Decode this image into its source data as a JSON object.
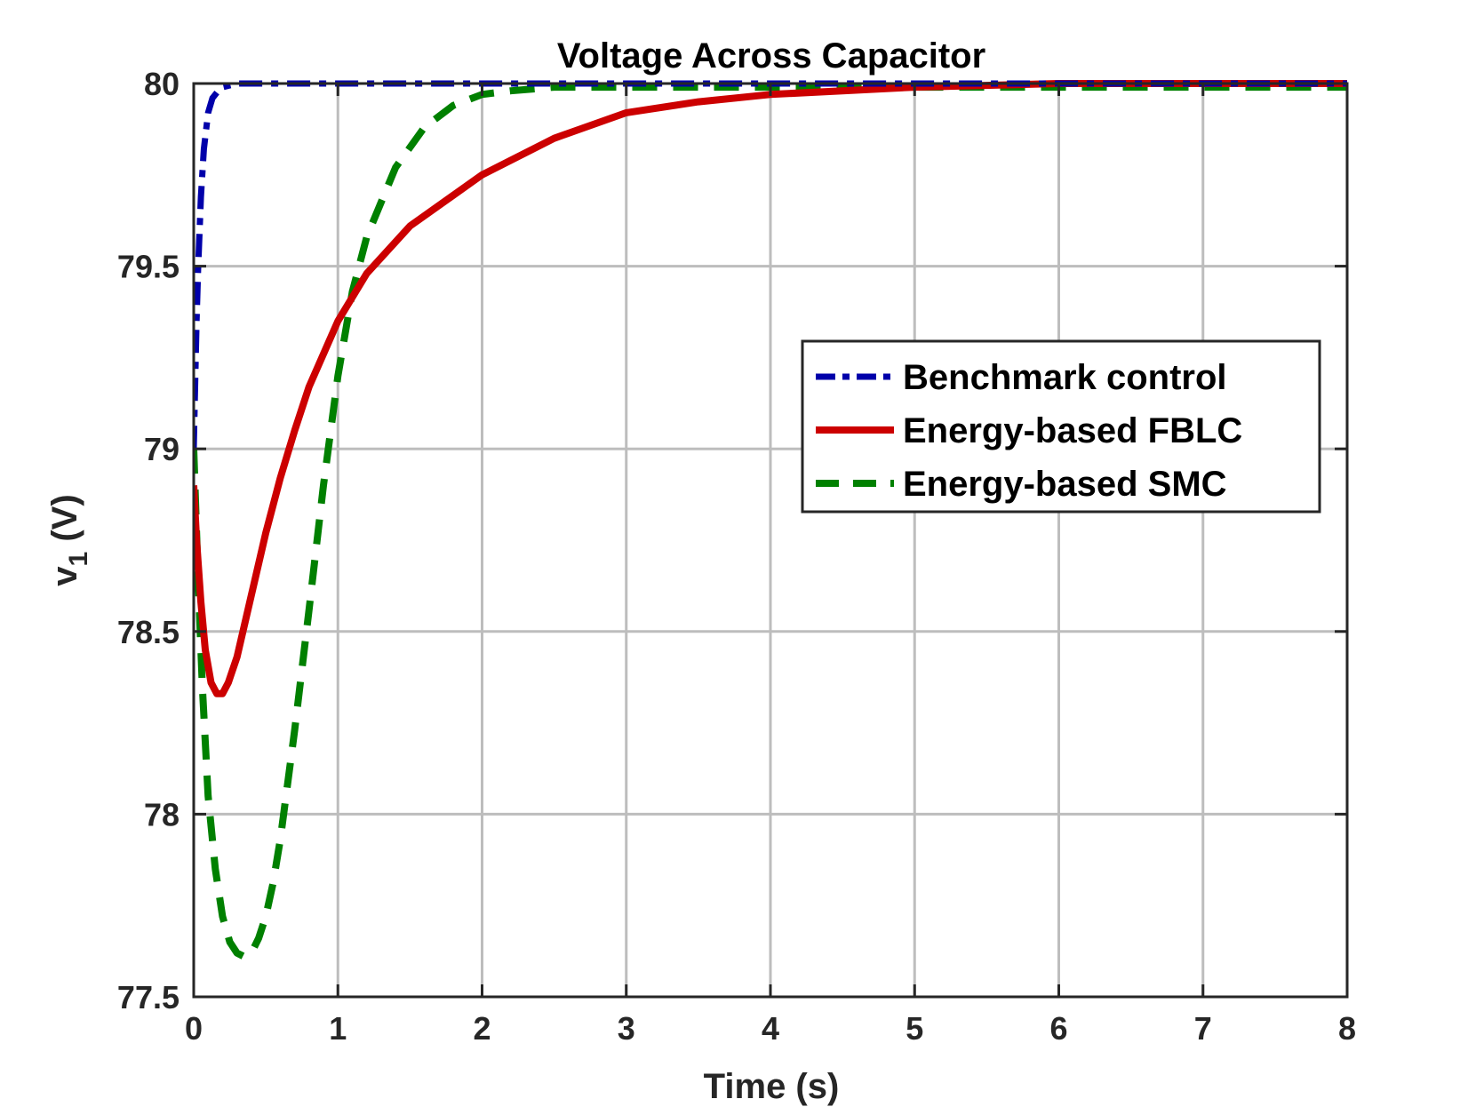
{
  "chart_data": {
    "type": "line",
    "title": "Voltage Across Capacitor",
    "xlabel": "Time (s)",
    "ylabel": {
      "main": "v",
      "subscript": "1",
      "unit": " (V)"
    },
    "xlim": [
      0,
      8
    ],
    "ylim": [
      77.5,
      80
    ],
    "xticks": [
      0,
      1,
      2,
      3,
      4,
      5,
      6,
      7,
      8
    ],
    "yticks": [
      77.5,
      78,
      78.5,
      79,
      79.5,
      80
    ],
    "xtick_labels": [
      "0",
      "1",
      "2",
      "3",
      "4",
      "5",
      "6",
      "7",
      "8"
    ],
    "ytick_labels": [
      "77.5",
      "78",
      "78.5",
      "79",
      "79.5",
      "80"
    ],
    "grid": true,
    "legend_position": "right-middle",
    "series": [
      {
        "name": "Benchmark control",
        "color": "#0000aa",
        "style": "dash-dot",
        "x": [
          0,
          0.01,
          0.02,
          0.03,
          0.05,
          0.07,
          0.1,
          0.13,
          0.17,
          0.2,
          0.25,
          0.3,
          0.4,
          0.5,
          1,
          2,
          3,
          4,
          5,
          6,
          7,
          8
        ],
        "y": [
          79.0,
          79.18,
          79.35,
          79.49,
          79.69,
          79.82,
          79.92,
          79.96,
          79.98,
          79.99,
          79.995,
          80.0,
          80.0,
          80.0,
          80.0,
          80.0,
          80.0,
          80.0,
          80.0,
          80.0,
          80.0,
          80.0
        ]
      },
      {
        "name": "Energy-based FBLC",
        "color": "#cc0000",
        "style": "solid",
        "x": [
          0,
          0.02,
          0.05,
          0.08,
          0.12,
          0.16,
          0.2,
          0.24,
          0.3,
          0.4,
          0.5,
          0.6,
          0.7,
          0.8,
          1.0,
          1.2,
          1.5,
          2.0,
          2.5,
          3.0,
          3.5,
          4.0,
          4.5,
          5.0,
          6.0,
          7.0,
          8.0
        ],
        "y": [
          78.9,
          78.75,
          78.58,
          78.45,
          78.36,
          78.33,
          78.33,
          78.36,
          78.43,
          78.6,
          78.77,
          78.92,
          79.05,
          79.17,
          79.35,
          79.48,
          79.61,
          79.75,
          79.85,
          79.92,
          79.95,
          79.97,
          79.98,
          79.99,
          80.0,
          80.0,
          80.0
        ]
      },
      {
        "name": "Energy-based SMC",
        "color": "#008000",
        "style": "dashed",
        "x": [
          0,
          0.03,
          0.06,
          0.1,
          0.15,
          0.2,
          0.25,
          0.3,
          0.35,
          0.4,
          0.45,
          0.5,
          0.55,
          0.6,
          0.7,
          0.8,
          0.9,
          1.0,
          1.1,
          1.2,
          1.4,
          1.6,
          1.8,
          2.0,
          2.2,
          2.5,
          3.0,
          4.0,
          5.0,
          6.0,
          7.0,
          8.0
        ],
        "y": [
          79.0,
          78.65,
          78.35,
          78.05,
          77.85,
          77.72,
          77.65,
          77.62,
          77.61,
          77.62,
          77.66,
          77.72,
          77.81,
          77.93,
          78.23,
          78.56,
          78.9,
          79.2,
          79.43,
          79.58,
          79.77,
          79.88,
          79.94,
          79.97,
          79.98,
          79.99,
          79.99,
          79.99,
          79.99,
          79.99,
          79.99,
          79.99
        ]
      }
    ]
  }
}
